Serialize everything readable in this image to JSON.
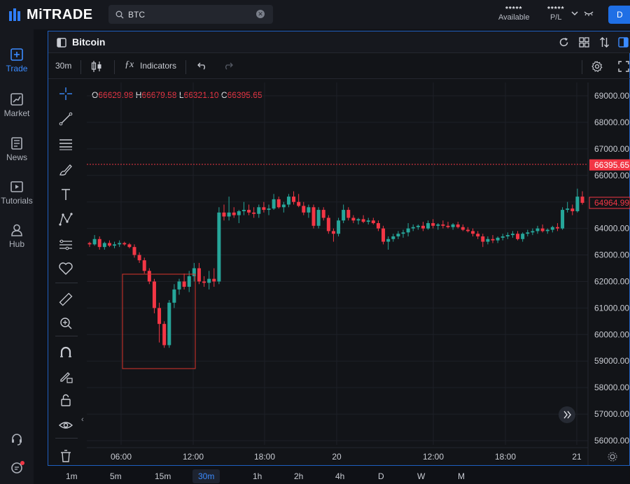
{
  "app": {
    "logo_text": "MiTRADE",
    "search": {
      "value": "BTC",
      "placeholder": ""
    },
    "account": [
      {
        "stars": "*****",
        "label": "Available"
      },
      {
        "stars": "*****",
        "label": "P/L"
      }
    ],
    "deposit_label": "D"
  },
  "sidebar": {
    "items": [
      {
        "label": "Trade",
        "icon": "plus-square-icon"
      },
      {
        "label": "Market",
        "icon": "chart-line-icon"
      },
      {
        "label": "News",
        "icon": "news-icon"
      },
      {
        "label": "Tutorials",
        "icon": "play-icon"
      },
      {
        "label": "Hub",
        "icon": "user-icon"
      }
    ]
  },
  "panel": {
    "title": "Bitcoin",
    "toolbar": {
      "interval": "30m",
      "indicators_label": "Indicators"
    }
  },
  "ohlc": {
    "o_label": "O",
    "o": "66629.98",
    "h_label": "H",
    "h": "66679.58",
    "l_label": "L",
    "l": "66321.10",
    "c_label": "C",
    "c": "66395.65"
  },
  "colors": {
    "up": "#26a69a",
    "down": "#f23645",
    "accent": "#3b8bff",
    "selection": "#d9342b"
  },
  "chart_data": {
    "type": "candlestick",
    "y_ticks": [
      "69000.00",
      "68000.00",
      "67000.00",
      "66000.00",
      "65000.00",
      "64000.00",
      "63000.00",
      "62000.00",
      "61000.00",
      "60000.00",
      "59000.00",
      "58000.00",
      "57000.00",
      "56000.00"
    ],
    "ylim": [
      56000,
      69000
    ],
    "x_ticks": [
      "06:00",
      "12:00",
      "18:00",
      "20",
      "12:00",
      "18:00",
      "21"
    ],
    "price_markers": [
      {
        "label": "66395.65",
        "value": 66395.65
      },
      {
        "label": "64964.99",
        "value": 64964.99
      }
    ],
    "candles": [
      [
        63450,
        63500,
        63300,
        63400
      ],
      [
        63400,
        63750,
        63350,
        63600
      ],
      [
        63600,
        63700,
        63200,
        63300
      ],
      [
        63300,
        63500,
        63200,
        63450
      ],
      [
        63450,
        63550,
        63300,
        63350
      ],
      [
        63350,
        63500,
        63250,
        63400
      ],
      [
        63400,
        63550,
        63300,
        63450
      ],
      [
        63450,
        63500,
        63350,
        63400
      ],
      [
        63400,
        63450,
        63250,
        63300
      ],
      [
        63300,
        63400,
        62900,
        63000
      ],
      [
        63000,
        63100,
        62700,
        62800
      ],
      [
        62800,
        62900,
        62300,
        62400
      ],
      [
        62400,
        62500,
        61900,
        62000
      ],
      [
        62000,
        62100,
        60800,
        61000
      ],
      [
        61000,
        61200,
        59700,
        60400
      ],
      [
        60400,
        60500,
        59500,
        59600
      ],
      [
        59600,
        61300,
        59500,
        61200
      ],
      [
        61200,
        61900,
        61000,
        61700
      ],
      [
        61700,
        62100,
        61500,
        62000
      ],
      [
        62000,
        62300,
        61700,
        61800
      ],
      [
        61800,
        62400,
        61600,
        62200
      ],
      [
        62200,
        62700,
        62000,
        62500
      ],
      [
        62500,
        62700,
        61900,
        62000
      ],
      [
        62000,
        62200,
        61800,
        61950
      ],
      [
        61950,
        62400,
        61700,
        62100
      ],
      [
        62100,
        62500,
        61800,
        62000
      ],
      [
        62000,
        64800,
        61900,
        64600
      ],
      [
        64600,
        64900,
        64300,
        64450
      ],
      [
        64450,
        65200,
        64300,
        64600
      ],
      [
        64600,
        64800,
        64400,
        64500
      ],
      [
        64500,
        64700,
        64200,
        64650
      ],
      [
        64650,
        65000,
        64500,
        64700
      ],
      [
        64700,
        64900,
        64500,
        64600
      ],
      [
        64600,
        64800,
        64400,
        64550
      ],
      [
        64550,
        64900,
        64400,
        64800
      ],
      [
        64800,
        65000,
        64600,
        64700
      ],
      [
        64700,
        64900,
        64500,
        64750
      ],
      [
        64750,
        65300,
        64700,
        65100
      ],
      [
        65100,
        65200,
        64750,
        64800
      ],
      [
        64800,
        65000,
        64600,
        64900
      ],
      [
        64900,
        65300,
        64800,
        65200
      ],
      [
        65200,
        65400,
        64900,
        65000
      ],
      [
        65000,
        65300,
        64800,
        64850
      ],
      [
        64850,
        65000,
        64500,
        64600
      ],
      [
        64600,
        64900,
        64400,
        64800
      ],
      [
        64800,
        64900,
        64000,
        64100
      ],
      [
        64100,
        64800,
        64000,
        64700
      ],
      [
        64700,
        64800,
        64300,
        64400
      ],
      [
        64400,
        64500,
        63800,
        63900
      ],
      [
        63900,
        64000,
        63500,
        63800
      ],
      [
        63800,
        64400,
        63700,
        64300
      ],
      [
        64300,
        64900,
        64200,
        64700
      ],
      [
        64700,
        64800,
        64300,
        64400
      ],
      [
        64400,
        64500,
        64200,
        64300
      ],
      [
        64300,
        64400,
        64150,
        64350
      ],
      [
        64350,
        64500,
        64200,
        64250
      ],
      [
        64250,
        64400,
        64150,
        64300
      ],
      [
        64300,
        64400,
        64150,
        64200
      ],
      [
        64200,
        64300,
        63900,
        64000
      ],
      [
        64000,
        64100,
        63400,
        63500
      ],
      [
        63500,
        63700,
        63200,
        63600
      ],
      [
        63600,
        63800,
        63500,
        63700
      ],
      [
        63700,
        63900,
        63600,
        63800
      ],
      [
        63800,
        63950,
        63650,
        63850
      ],
      [
        63850,
        64200,
        63700,
        64000
      ],
      [
        64000,
        64150,
        63900,
        64050
      ],
      [
        64050,
        64150,
        63950,
        64100
      ],
      [
        64100,
        64250,
        63900,
        64000
      ],
      [
        64000,
        64300,
        63950,
        64200
      ],
      [
        64200,
        64350,
        64000,
        64100
      ],
      [
        64100,
        64200,
        63950,
        64150
      ],
      [
        64150,
        64300,
        64000,
        64100
      ],
      [
        64100,
        64250,
        64000,
        64050
      ],
      [
        64050,
        64200,
        63950,
        64150
      ],
      [
        64150,
        64250,
        64000,
        64050
      ],
      [
        64050,
        64150,
        63900,
        63950
      ],
      [
        63950,
        64050,
        63850,
        63900
      ],
      [
        63900,
        64000,
        63700,
        63800
      ],
      [
        63800,
        63900,
        63600,
        63700
      ],
      [
        63700,
        63800,
        63300,
        63500
      ],
      [
        63500,
        63700,
        63400,
        63600
      ],
      [
        63600,
        63750,
        63450,
        63550
      ],
      [
        63550,
        63700,
        63450,
        63650
      ],
      [
        63650,
        63800,
        63550,
        63700
      ],
      [
        63700,
        63850,
        63600,
        63750
      ],
      [
        63750,
        63900,
        63650,
        63800
      ],
      [
        63800,
        63900,
        63550,
        63600
      ],
      [
        63600,
        63850,
        63500,
        63800
      ],
      [
        63800,
        63950,
        63700,
        63850
      ],
      [
        63850,
        64000,
        63750,
        63900
      ],
      [
        63900,
        64100,
        63800,
        64000
      ],
      [
        64000,
        64150,
        63850,
        63900
      ],
      [
        63900,
        64000,
        63800,
        63950
      ],
      [
        63950,
        64100,
        63850,
        64050
      ],
      [
        64050,
        64200,
        63900,
        64000
      ],
      [
        64000,
        64800,
        63950,
        64700
      ],
      [
        64700,
        65000,
        64600,
        64750
      ],
      [
        64750,
        64900,
        64500,
        64650
      ],
      [
        64650,
        65500,
        64600,
        65200
      ],
      [
        65200,
        65400,
        64900,
        64965
      ]
    ]
  },
  "timeframes": [
    "1m",
    "5m",
    "15m",
    "30m",
    "1h",
    "2h",
    "4h",
    "D",
    "W",
    "M"
  ],
  "active_timeframe": "30m"
}
